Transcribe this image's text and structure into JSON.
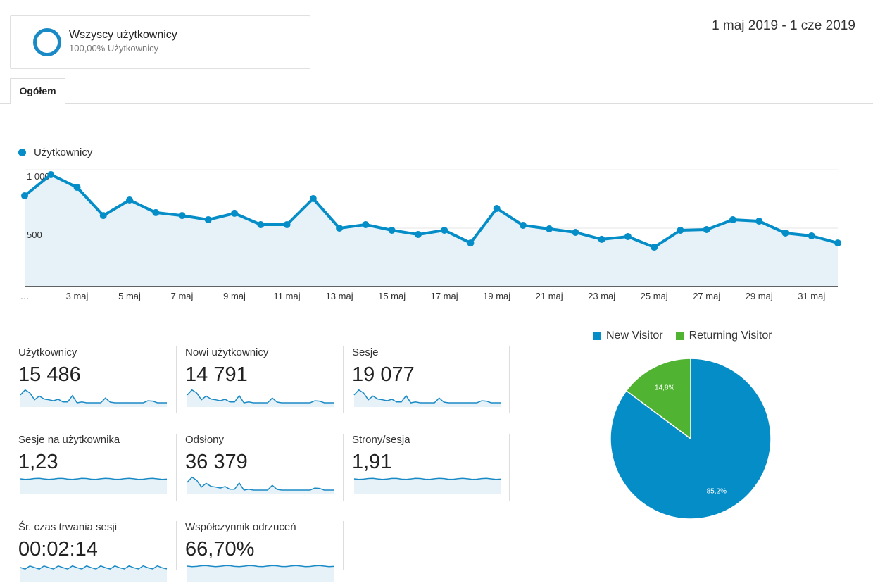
{
  "segment": {
    "title": "Wszyscy użytkownicy",
    "subtitle": "100,00% Użytkownicy"
  },
  "date_range": "1 maj 2019 - 1 cze 2019",
  "tabs": [
    {
      "label": "Ogółem",
      "active": true
    }
  ],
  "colors": {
    "accent": "#058dc7",
    "fill": "#e6f2f8",
    "returning": "#50b432"
  },
  "chart_data": [
    {
      "type": "line",
      "series": [
        {
          "name": "Użytkownicy",
          "values": [
            777,
            958,
            849,
            608,
            741,
            633,
            608,
            572,
            627,
            530,
            530,
            753,
            500,
            530,
            482,
            446,
            482,
            373,
            669,
            524,
            494,
            464,
            404,
            428,
            337,
            482,
            488,
            572,
            560,
            458,
            434,
            373
          ]
        }
      ],
      "x": [
        "1 maj",
        "2 maj",
        "3 maj",
        "4 maj",
        "5 maj",
        "6 maj",
        "7 maj",
        "8 maj",
        "9 maj",
        "10 maj",
        "11 maj",
        "12 maj",
        "13 maj",
        "14 maj",
        "15 maj",
        "16 maj",
        "17 maj",
        "18 maj",
        "19 maj",
        "20 maj",
        "21 maj",
        "22 maj",
        "23 maj",
        "24 maj",
        "25 maj",
        "26 maj",
        "27 maj",
        "28 maj",
        "29 maj",
        "30 maj",
        "31 maj",
        "1 cze"
      ],
      "x_tick_labels": [
        "…",
        "3 maj",
        "5 maj",
        "7 maj",
        "9 maj",
        "11 maj",
        "13 maj",
        "15 maj",
        "17 maj",
        "19 maj",
        "21 maj",
        "23 maj",
        "25 maj",
        "27 maj",
        "29 maj",
        "31 maj"
      ],
      "y_tick_labels": [
        "500",
        "1 000"
      ],
      "yticks": [
        500,
        1000
      ],
      "ylim": [
        0,
        1000
      ],
      "grid": true,
      "legend": "top-left"
    },
    {
      "type": "pie",
      "slices": [
        {
          "name": "New Visitor",
          "value": 85.2,
          "label": "85,2%",
          "color": "#058dc7"
        },
        {
          "name": "Returning Visitor",
          "value": 14.8,
          "label": "14,8%",
          "color": "#50b432"
        }
      ],
      "legend": "top"
    }
  ],
  "metrics": [
    {
      "label": "Użytkownicy",
      "value": "15 486",
      "trend": "users"
    },
    {
      "label": "Nowi użytkownicy",
      "value": "14 791",
      "trend": "users"
    },
    {
      "label": "Sesje",
      "value": "19 077",
      "trend": "users"
    },
    {
      "label": "Sesje na użytkownika",
      "value": "1,23",
      "trend": "flat"
    },
    {
      "label": "Odsłony",
      "value": "36 379",
      "trend": "users"
    },
    {
      "label": "Strony/sesja",
      "value": "1,91",
      "trend": "flat"
    },
    {
      "label": "Śr. czas trwania sesji",
      "value": "00:02:14",
      "trend": "noisy"
    },
    {
      "label": "Współczynnik odrzuceń",
      "value": "66,70%",
      "trend": "flat"
    }
  ]
}
